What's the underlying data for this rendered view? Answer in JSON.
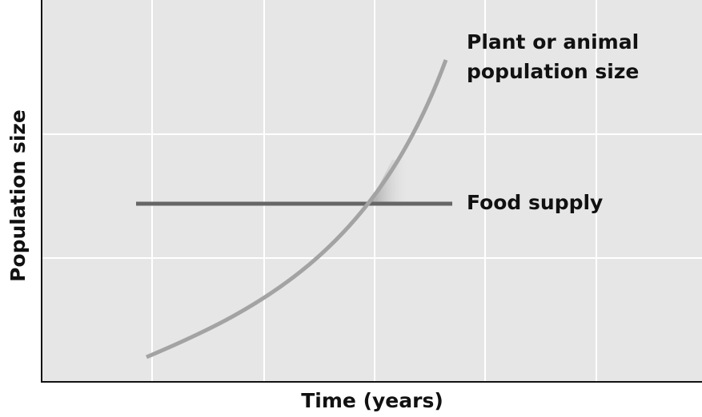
{
  "y_axis_label": "Population size",
  "x_axis_label": "Time (years)",
  "curve_label": {
    "line1": "Plant or animal",
    "line2": "population size"
  },
  "line_label": "Food supply"
}
